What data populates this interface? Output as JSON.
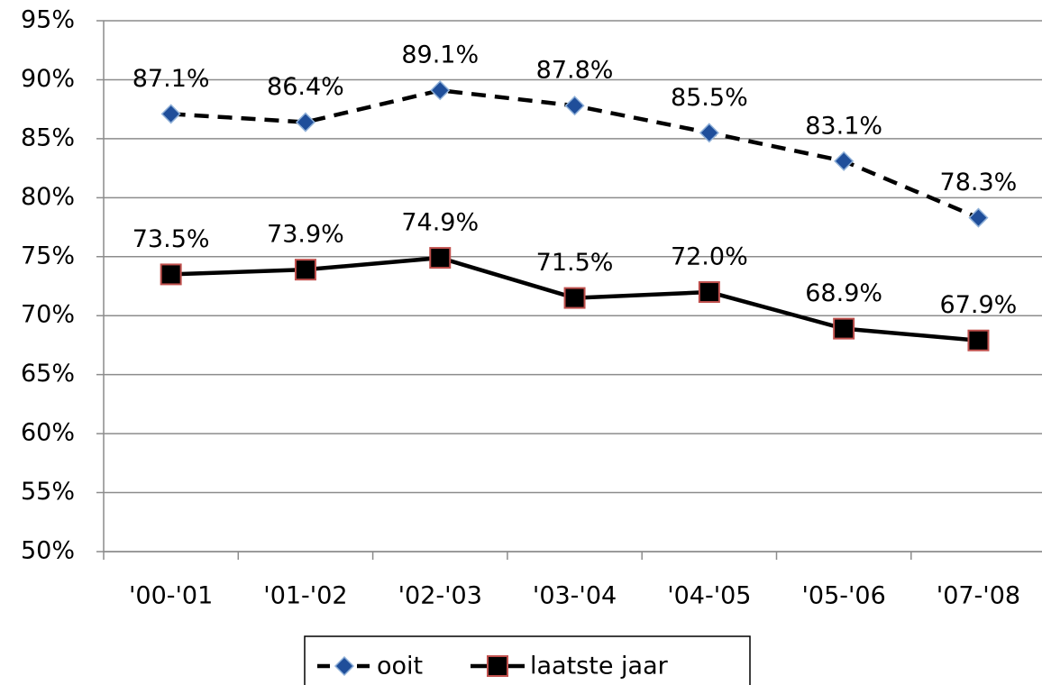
{
  "chart_data": {
    "type": "line",
    "categories": [
      "'00-'01",
      "'01-'02",
      "'02-'03",
      "'03-'04",
      "'04-'05",
      "'05-'06",
      "'07-'08"
    ],
    "series": [
      {
        "name": "ooit",
        "color": "#000000",
        "linestyle": "dashed",
        "marker": "diamond",
        "marker_color": "#1f4e9a",
        "marker_edge": "#8fb0d8",
        "values": [
          87.1,
          86.4,
          89.1,
          87.8,
          85.5,
          83.1,
          78.3
        ],
        "value_labels": [
          "87.1%",
          "86.4%",
          "89.1%",
          "87.8%",
          "85.5%",
          "83.1%",
          "78.3%"
        ]
      },
      {
        "name": "laatste jaar",
        "color": "#000000",
        "linestyle": "solid",
        "marker": "square",
        "marker_color": "#000000",
        "marker_edge": "#c0504d",
        "values": [
          73.5,
          73.9,
          74.9,
          71.5,
          72.0,
          68.9,
          67.9
        ],
        "value_labels": [
          "73.5%",
          "73.9%",
          "74.9%",
          "71.5%",
          "72.0%",
          "68.9%",
          "67.9%"
        ]
      }
    ],
    "ylim": [
      50,
      95
    ],
    "yticks": [
      {
        "value": 50,
        "label": "50%"
      },
      {
        "value": 55,
        "label": "55%"
      },
      {
        "value": 60,
        "label": "60%"
      },
      {
        "value": 65,
        "label": "65%"
      },
      {
        "value": 70,
        "label": "70%"
      },
      {
        "value": 75,
        "label": "75%"
      },
      {
        "value": 80,
        "label": "80%"
      },
      {
        "value": 85,
        "label": "85%"
      },
      {
        "value": 90,
        "label": "90%"
      },
      {
        "value": 95,
        "label": "95%"
      }
    ],
    "grid": true,
    "legend": "bottom"
  }
}
